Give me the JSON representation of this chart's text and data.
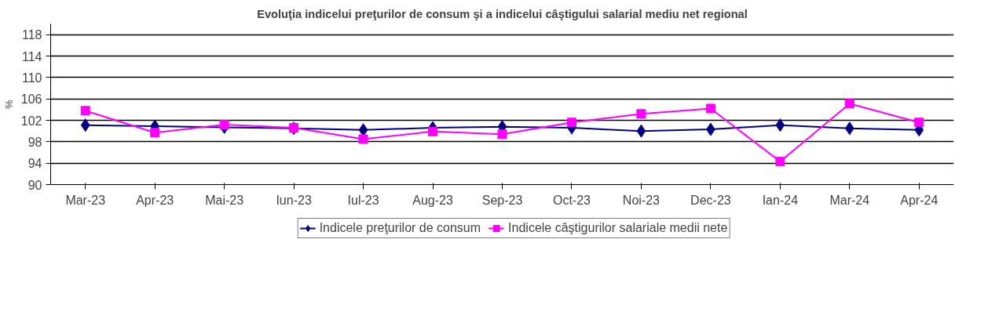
{
  "chart_data": {
    "type": "line",
    "title": "Evoluţia indicelui preţurilor de consum şi a indicelui câştigului salarial mediu net regional",
    "ylabel": "%",
    "categories": [
      "Mar-23",
      "Apr-23",
      "Mai-23",
      "Iun-23",
      "Iul-23",
      "Aug-23",
      "Sep-23",
      "Oct-23",
      "Noi-23",
      "Dec-23",
      "Ian-24",
      "Mar-24",
      "Apr-24"
    ],
    "series": [
      {
        "name": "Indicele preţurilor de consum",
        "color": "#000080",
        "marker": "diamond",
        "values": [
          101.1,
          100.9,
          100.7,
          100.5,
          100.2,
          100.6,
          100.8,
          100.6,
          100.0,
          100.3,
          101.1,
          100.5,
          100.2
        ]
      },
      {
        "name": "Indicele câştigurilor salariale medii nete",
        "color": "#ff00ff",
        "marker": "square",
        "values": [
          103.8,
          99.7,
          101.2,
          100.6,
          98.5,
          99.9,
          99.4,
          101.6,
          103.2,
          104.2,
          94.3,
          105.1,
          101.6
        ]
      }
    ],
    "ylim": [
      90,
      120
    ],
    "yticks": [
      90,
      94,
      98,
      102,
      106,
      110,
      114,
      118
    ],
    "grid": "y",
    "legend": "bottom"
  }
}
